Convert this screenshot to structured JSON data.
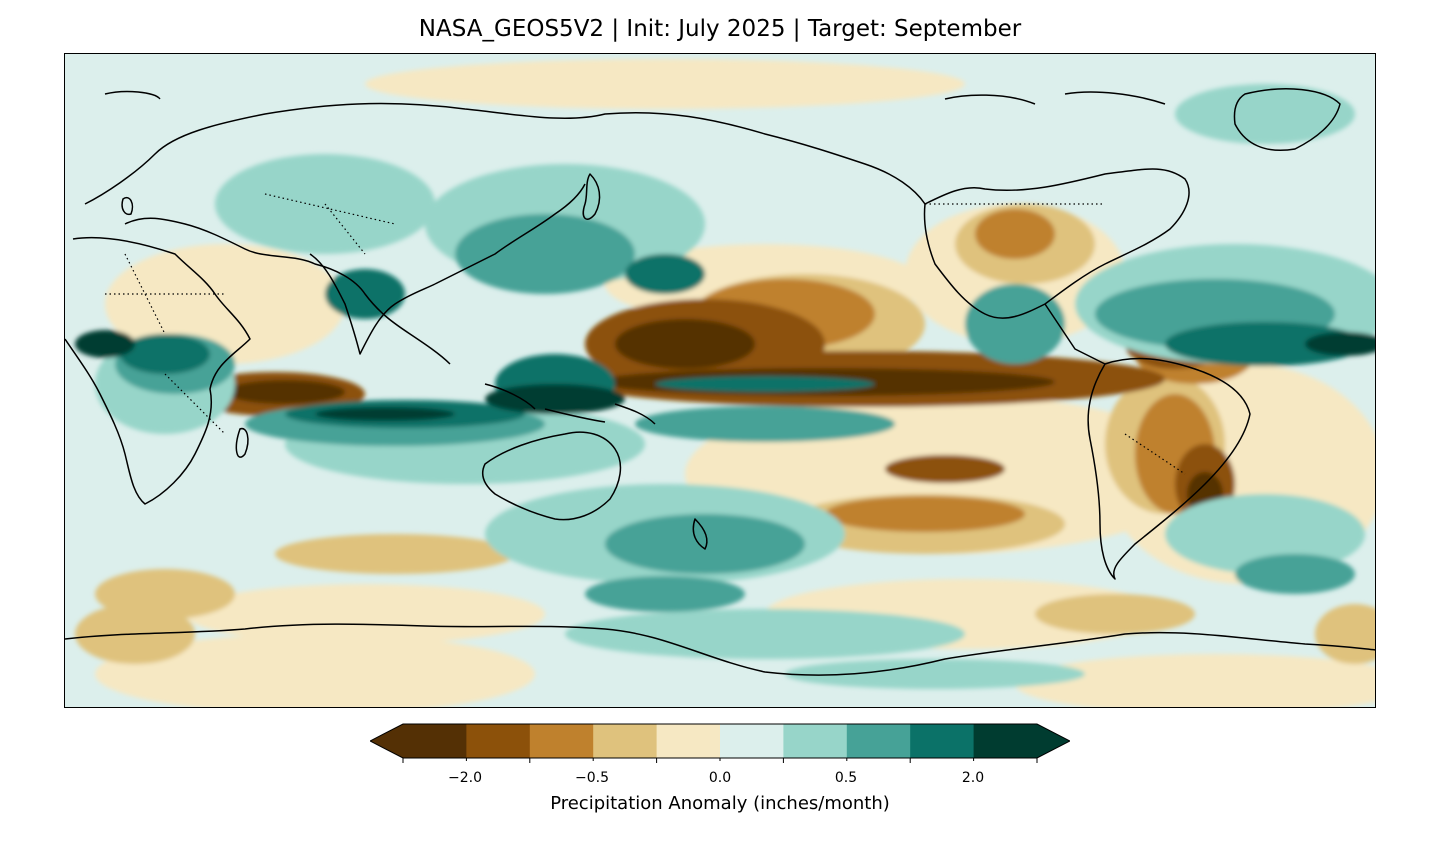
{
  "title": "NASA_GEOS5V2 | Init: July 2025 | Target: September",
  "map": {
    "projection": "PlateCarree",
    "variable": "Precipitation Anomaly",
    "units": "inches/month"
  },
  "colorbar": {
    "label": "Precipitation Anomaly (inches/month)",
    "extend": "both",
    "colors": [
      "#543005",
      "#8c510a",
      "#bf812d",
      "#dfc27d",
      "#f6e8c3",
      "#dcefec",
      "#97d5c9",
      "#46a297",
      "#0b7268",
      "#003c30"
    ],
    "tick_labels": [
      {
        "id": "t1",
        "text": "−2.0"
      },
      {
        "id": "t2",
        "text": "−0.5"
      },
      {
        "id": "t3",
        "text": "0.0"
      },
      {
        "id": "t4",
        "text": "0.5"
      },
      {
        "id": "t5",
        "text": "2.0"
      }
    ]
  }
}
